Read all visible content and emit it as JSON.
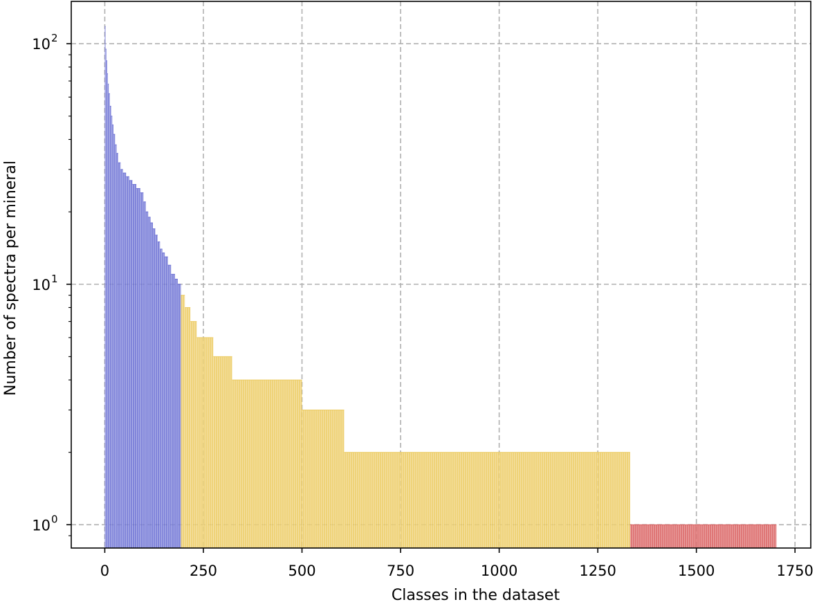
{
  "chart_data": {
    "type": "bar",
    "xlabel": "Classes in the dataset",
    "ylabel": "Number of spectra per mineral",
    "y_scale": "log",
    "ylim": [
      0.8,
      150
    ],
    "xlim": [
      -85,
      1790
    ],
    "xticks": [
      0,
      250,
      500,
      750,
      1000,
      1250,
      1500,
      1750
    ],
    "ytick_exponents": [
      0,
      1,
      2
    ],
    "ytick_base": "10",
    "grid": true,
    "groups": [
      {
        "color": "#6a6fd4",
        "x_range": [
          0,
          193
        ],
        "steps": [
          [
            0,
            118
          ],
          [
            2,
            95
          ],
          [
            4,
            85
          ],
          [
            6,
            75
          ],
          [
            8,
            68
          ],
          [
            10,
            62
          ],
          [
            13,
            55
          ],
          [
            16,
            50
          ],
          [
            19,
            46
          ],
          [
            22,
            42
          ],
          [
            26,
            38
          ],
          [
            30,
            35
          ],
          [
            34,
            32
          ],
          [
            40,
            30
          ],
          [
            46,
            29
          ],
          [
            54,
            28
          ],
          [
            62,
            27
          ],
          [
            70,
            26
          ],
          [
            80,
            25
          ],
          [
            90,
            24
          ],
          [
            98,
            22
          ],
          [
            104,
            20
          ],
          [
            110,
            19
          ],
          [
            116,
            18
          ],
          [
            122,
            17
          ],
          [
            128,
            16
          ],
          [
            134,
            15
          ],
          [
            140,
            14
          ],
          [
            146,
            13.5
          ],
          [
            152,
            13
          ],
          [
            160,
            12
          ],
          [
            168,
            11
          ],
          [
            178,
            10.5
          ],
          [
            185,
            10
          ]
        ]
      },
      {
        "color": "#eccb62",
        "x_range": [
          193,
          1332
        ],
        "steps": [
          [
            193,
            9
          ],
          [
            203,
            8
          ],
          [
            217,
            7
          ],
          [
            233,
            6
          ],
          [
            275,
            5
          ],
          [
            323,
            4
          ],
          [
            500,
            3
          ],
          [
            607,
            2
          ]
        ]
      },
      {
        "color": "#d95f5f",
        "x_range": [
          1332,
          1703
        ],
        "steps": [
          [
            1332,
            1
          ]
        ]
      }
    ]
  }
}
